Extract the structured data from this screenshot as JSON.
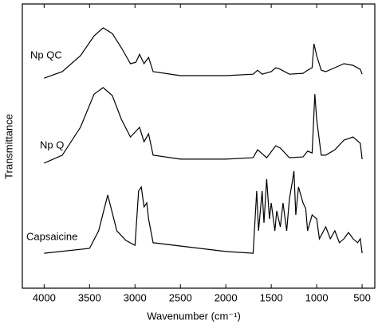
{
  "chart_data": {
    "type": "line",
    "x_label": "Wavenumber (cm⁻¹)",
    "y_label": "Transmittance",
    "xlim": [
      4240,
      360
    ],
    "xticks": [
      4000,
      3500,
      3000,
      2500,
      2000,
      1500,
      1000,
      500
    ],
    "ylim": [
      0,
      100
    ],
    "series": [
      {
        "name": "Np QC",
        "color": "#000000",
        "x": [
          4000,
          3800,
          3600,
          3450,
          3350,
          3250,
          3150,
          3050,
          2990,
          2950,
          2900,
          2850,
          2800,
          2500,
          2000,
          1700,
          1650,
          1600,
          1500,
          1450,
          1400,
          1300,
          1150,
          1100,
          1050,
          1030,
          1000,
          950,
          900,
          800,
          700,
          600,
          520,
          500
        ],
        "values": [
          73.9,
          76.2,
          81.8,
          88.8,
          91.6,
          89.6,
          84.6,
          79.0,
          79.5,
          82.3,
          79.0,
          81.2,
          76.2,
          74.8,
          74.8,
          75.3,
          76.7,
          75.3,
          76.2,
          77.6,
          77.0,
          75.3,
          75.6,
          76.7,
          77.6,
          86.0,
          81.8,
          76.7,
          76.2,
          77.6,
          79.0,
          78.4,
          77.0,
          75.3
        ]
      },
      {
        "name": "Np Q",
        "color": "#000000",
        "x": [
          4000,
          3800,
          3600,
          3450,
          3350,
          3250,
          3150,
          3050,
          2950,
          2900,
          2850,
          2800,
          2500,
          2000,
          1700,
          1650,
          1550,
          1450,
          1400,
          1300,
          1150,
          1100,
          1050,
          1020,
          1000,
          950,
          900,
          800,
          700,
          600,
          520,
          500
        ],
        "values": [
          44.0,
          46.8,
          56.6,
          68.3,
          70.6,
          67.8,
          59.4,
          53.2,
          56.6,
          51.5,
          54.3,
          46.8,
          45.4,
          45.4,
          45.9,
          48.7,
          45.9,
          50.1,
          49.3,
          45.9,
          46.2,
          48.2,
          47.6,
          68.3,
          59.4,
          46.8,
          46.8,
          48.7,
          52.1,
          53.2,
          51.0,
          45.4
        ]
      },
      {
        "name": "Capsaicine",
        "color": "#000000",
        "x": [
          4000,
          3500,
          3400,
          3300,
          3200,
          3100,
          3000,
          2960,
          2930,
          2900,
          2870,
          2850,
          2800,
          2000,
          1700,
          1660,
          1640,
          1600,
          1580,
          1550,
          1520,
          1500,
          1460,
          1440,
          1400,
          1370,
          1330,
          1300,
          1270,
          1250,
          1230,
          1200,
          1150,
          1120,
          1100,
          1050,
          1000,
          970,
          900,
          850,
          800,
          750,
          700,
          650,
          600,
          550,
          520,
          500
        ],
        "values": [
          12.3,
          14.0,
          20.2,
          32.8,
          20.2,
          16.8,
          15.1,
          34.2,
          35.6,
          28.6,
          30.0,
          24.4,
          16.0,
          12.9,
          12.3,
          34.2,
          20.2,
          34.2,
          23.0,
          38.4,
          24.4,
          30.0,
          20.2,
          27.2,
          21.6,
          30.0,
          20.2,
          31.4,
          37.0,
          41.2,
          25.8,
          35.6,
          30.0,
          28.0,
          20.2,
          25.8,
          24.4,
          17.4,
          21.6,
          17.4,
          20.2,
          16.0,
          17.4,
          19.6,
          17.4,
          16.0,
          17.4,
          12.3
        ]
      }
    ]
  }
}
